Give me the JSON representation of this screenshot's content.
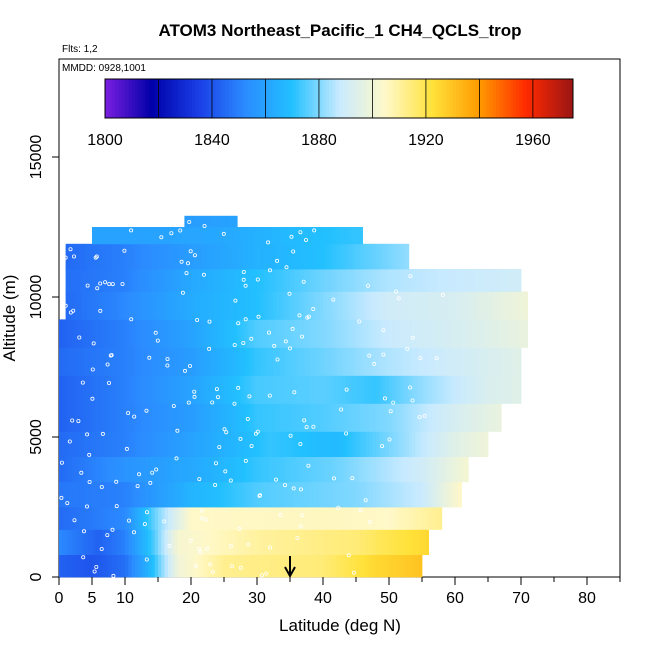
{
  "title": "ATOM3 Northeast_Pacific_1 CH4_QCLS_trop",
  "flights_text": "Flts: 1,2",
  "dates_text": "MMDD: 0928,1001",
  "chart_data": {
    "type": "heatmap",
    "title": "ATOM3 Northeast_Pacific_1 CH4_QCLS_trop",
    "xlabel": "Latitude (deg N)",
    "ylabel": "Altitude (m)",
    "xlim": [
      0,
      85
    ],
    "ylim": [
      0,
      18500
    ],
    "x_ticks": [
      0,
      5,
      10,
      20,
      30,
      40,
      50,
      60,
      70,
      80
    ],
    "x_tick_labels": [
      "0",
      "5",
      "10",
      "20",
      "30",
      "40",
      "50",
      "60",
      "70",
      "80"
    ],
    "y_ticks": [
      0,
      5000,
      10000,
      15000
    ],
    "y_tick_labels": [
      "0",
      "5000",
      "10000",
      "15000"
    ],
    "colorbar": {
      "range": [
        1800,
        1975
      ],
      "ticks": [
        1800,
        1840,
        1880,
        1920,
        1960
      ],
      "tick_labels": [
        "1800",
        "1840",
        "1880",
        "1920",
        "1960"
      ],
      "colors": [
        "#7b1fe0",
        "#0000a8",
        "#1a3ee6",
        "#2b8cff",
        "#22c0ff",
        "#c8eaff",
        "#fff8c8",
        "#ffe23a",
        "#ff9a00",
        "#ff2a00",
        "#9a1515"
      ]
    },
    "arrow_latitude": 35,
    "rows": [
      {
        "alt": [
          0,
          800
        ],
        "x": [
          0,
          55
        ],
        "vals": [
          [
            0,
            1843
          ],
          [
            5,
            1840
          ],
          [
            10,
            1846
          ],
          [
            14,
            1868
          ],
          [
            18,
            1900
          ],
          [
            25,
            1912
          ],
          [
            40,
            1915
          ],
          [
            48,
            1925
          ],
          [
            55,
            1930
          ]
        ]
      },
      {
        "alt": [
          800,
          1700
        ],
        "x": [
          0,
          56
        ],
        "vals": [
          [
            0,
            1852
          ],
          [
            6,
            1843
          ],
          [
            10,
            1850
          ],
          [
            14,
            1872
          ],
          [
            18,
            1902
          ],
          [
            30,
            1910
          ],
          [
            45,
            1915
          ],
          [
            50,
            1920
          ],
          [
            56,
            1925
          ]
        ]
      },
      {
        "alt": [
          1700,
          2500
        ],
        "x": [
          0,
          58
        ],
        "vals": [
          [
            0,
            1845
          ],
          [
            10,
            1852
          ],
          [
            15,
            1880
          ],
          [
            20,
            1905
          ],
          [
            40,
            1906
          ],
          [
            50,
            1905
          ],
          [
            58,
            1912
          ]
        ]
      },
      {
        "alt": [
          2500,
          3400
        ],
        "x": [
          0,
          61
        ],
        "vals": [
          [
            0,
            1848
          ],
          [
            10,
            1850
          ],
          [
            20,
            1866
          ],
          [
            30,
            1875
          ],
          [
            45,
            1880
          ],
          [
            55,
            1888
          ],
          [
            61,
            1905
          ]
        ]
      },
      {
        "alt": [
          3400,
          4300
        ],
        "x": [
          0,
          62
        ],
        "vals": [
          [
            0,
            1845
          ],
          [
            10,
            1855
          ],
          [
            20,
            1862
          ],
          [
            30,
            1872
          ],
          [
            42,
            1878
          ],
          [
            55,
            1890
          ],
          [
            62,
            1902
          ]
        ]
      },
      {
        "alt": [
          4300,
          5200
        ],
        "x": [
          0,
          65
        ],
        "vals": [
          [
            0,
            1845
          ],
          [
            10,
            1850
          ],
          [
            20,
            1860
          ],
          [
            32,
            1872
          ],
          [
            42,
            1868
          ],
          [
            52,
            1882
          ],
          [
            60,
            1895
          ],
          [
            65,
            1900
          ]
        ]
      },
      {
        "alt": [
          5200,
          6200
        ],
        "x": [
          0,
          67
        ],
        "vals": [
          [
            0,
            1843
          ],
          [
            10,
            1850
          ],
          [
            20,
            1858
          ],
          [
            30,
            1872
          ],
          [
            40,
            1875
          ],
          [
            50,
            1880
          ],
          [
            60,
            1892
          ],
          [
            67,
            1898
          ]
        ]
      },
      {
        "alt": [
          6200,
          7200
        ],
        "x": [
          0,
          70
        ],
        "vals": [
          [
            0,
            1843
          ],
          [
            10,
            1850
          ],
          [
            20,
            1860
          ],
          [
            30,
            1874
          ],
          [
            40,
            1876
          ],
          [
            48,
            1872
          ],
          [
            55,
            1882
          ],
          [
            65,
            1893
          ],
          [
            70,
            1895
          ]
        ]
      },
      {
        "alt": [
          7200,
          8200
        ],
        "x": [
          0,
          70
        ],
        "vals": [
          [
            0,
            1845
          ],
          [
            10,
            1850
          ],
          [
            20,
            1858
          ],
          [
            30,
            1872
          ],
          [
            40,
            1878
          ],
          [
            50,
            1885
          ],
          [
            60,
            1890
          ],
          [
            70,
            1895
          ]
        ]
      },
      {
        "alt": [
          8200,
          9200
        ],
        "x": [
          0,
          71
        ],
        "vals": [
          [
            0,
            1843
          ],
          [
            10,
            1850
          ],
          [
            20,
            1860
          ],
          [
            30,
            1875
          ],
          [
            40,
            1880
          ],
          [
            50,
            1888
          ],
          [
            60,
            1892
          ],
          [
            71,
            1898
          ]
        ]
      },
      {
        "alt": [
          9200,
          10200
        ],
        "x": [
          1,
          71
        ],
        "vals": [
          [
            1,
            1845
          ],
          [
            10,
            1852
          ],
          [
            20,
            1863
          ],
          [
            30,
            1870
          ],
          [
            40,
            1880
          ],
          [
            50,
            1890
          ],
          [
            60,
            1892
          ],
          [
            71,
            1900
          ]
        ]
      },
      {
        "alt": [
          10200,
          11000
        ],
        "x": [
          1,
          70
        ],
        "vals": [
          [
            1,
            1846
          ],
          [
            10,
            1850
          ],
          [
            20,
            1862
          ],
          [
            30,
            1870
          ],
          [
            40,
            1878
          ],
          [
            50,
            1885
          ],
          [
            60,
            1888
          ],
          [
            70,
            1890
          ]
        ]
      },
      {
        "alt": [
          11000,
          11900
        ],
        "x": [
          1,
          53
        ],
        "vals": [
          [
            1,
            1845
          ],
          [
            10,
            1850
          ],
          [
            20,
            1858
          ],
          [
            30,
            1865
          ],
          [
            40,
            1870
          ],
          [
            53,
            1882
          ]
        ]
      },
      {
        "alt": [
          11900,
          12500
        ],
        "x": [
          5,
          46
        ],
        "vals": [
          [
            5,
            1860
          ],
          [
            15,
            1860
          ],
          [
            25,
            1862
          ],
          [
            35,
            1868
          ],
          [
            46,
            1872
          ]
        ]
      },
      {
        "alt": [
          12500,
          12900
        ],
        "x": [
          19,
          27
        ],
        "vals": [
          [
            19,
            1858
          ],
          [
            27,
            1860
          ]
        ]
      }
    ]
  }
}
